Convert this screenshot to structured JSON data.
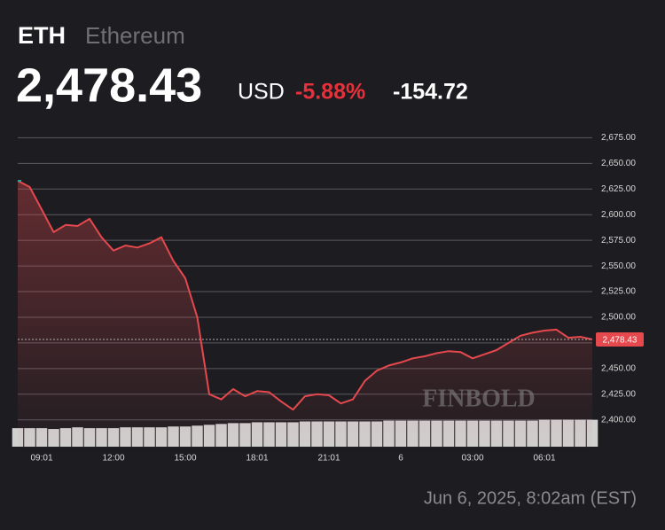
{
  "header": {
    "symbol": "ETH",
    "name": "Ethereum",
    "price": "2,478.43",
    "currency": "USD",
    "change_pct": "-5.88%",
    "change_abs": "-154.72"
  },
  "chart_data": {
    "type": "line",
    "categories": [
      null,
      null,
      "09:01",
      null,
      null,
      null,
      null,
      null,
      "12:00",
      null,
      null,
      null,
      null,
      null,
      "15:00",
      null,
      null,
      null,
      null,
      null,
      "18:01",
      null,
      null,
      null,
      null,
      null,
      "21:01",
      null,
      null,
      null,
      null,
      null,
      "6",
      null,
      null,
      null,
      null,
      null,
      "03:00",
      null,
      null,
      null,
      null,
      null,
      "06:01",
      null,
      null,
      null,
      null
    ],
    "series": [
      {
        "color": "#e5484d",
        "values": [
          2633,
          2627,
          2605,
          2583,
          2590,
          2589,
          2596,
          2578,
          2565,
          2570,
          2568,
          2572,
          2578,
          2555,
          2538,
          2500,
          2425,
          2420,
          2430,
          2423,
          2428,
          2427,
          2418,
          2410,
          2423,
          2425,
          2424,
          2416,
          2420,
          2438,
          2448,
          2453,
          2456,
          2460,
          2462,
          2465,
          2467,
          2466,
          2460,
          2464,
          2468,
          2475,
          2482,
          2485,
          2487,
          2488,
          2480,
          2481,
          2478.43
        ]
      }
    ],
    "start_color": "#26a69a",
    "volume": [
      22,
      22,
      22,
      21,
      22,
      23,
      22,
      22,
      22,
      23,
      23,
      23,
      23,
      24,
      24,
      25,
      26,
      27,
      28,
      28,
      29,
      29,
      29,
      29,
      30,
      30,
      30,
      30,
      30,
      30,
      30,
      31,
      31,
      31,
      31,
      31,
      31,
      31,
      31,
      31,
      31,
      31,
      31,
      31,
      32,
      32,
      32,
      32,
      32
    ],
    "volume_color": "#d0d0d0",
    "ylim": [
      2373,
      2684
    ],
    "yticks": [
      {
        "value": 2400,
        "label": "2,400.00"
      },
      {
        "value": 2425,
        "label": "2,425.00"
      },
      {
        "value": 2450,
        "label": "2,450.00"
      },
      {
        "value": 2475,
        "label": "2,475.00"
      },
      {
        "value": 2500,
        "label": "2,500.00"
      },
      {
        "value": 2525,
        "label": "2,525.00"
      },
      {
        "value": 2550,
        "label": "2,550.00"
      },
      {
        "value": 2575,
        "label": "2,575.00"
      },
      {
        "value": 2600,
        "label": "2,600.00"
      },
      {
        "value": 2625,
        "label": "2,625.00"
      },
      {
        "value": 2650,
        "label": "2,650.00"
      },
      {
        "value": 2675,
        "label": "2,675.00"
      }
    ],
    "grid": true,
    "watermark": "FINBOLD"
  },
  "footer": {
    "timestamp": "Jun 6, 2025, 8:02am (EST)"
  }
}
